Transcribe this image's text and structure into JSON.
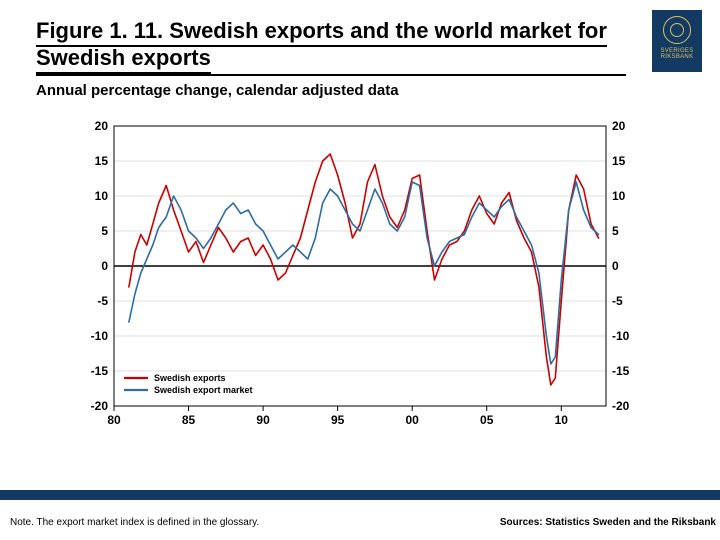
{
  "title": "Figure 1. 11. Swedish exports and the world market for Swedish exports",
  "subtitle": "Annual percentage change, calendar adjusted data",
  "note": "Note. The export market index is defined in the glossary.",
  "sources": "Sources: Statistics Sweden and the Riksbank",
  "logo_text_top": "SVERIGES",
  "logo_text_bottom": "RIKSBANK",
  "chart": {
    "type": "line",
    "background_color": "#ffffff",
    "plot_border_color": "#000000",
    "grid_color": "#bfbfbf",
    "grid_width": 0.6,
    "zero_line_color": "#000000",
    "zero_line_width": 1.6,
    "axis_font_size": 12,
    "axis_font_weight": "bold",
    "ylim": [
      -20,
      20
    ],
    "ytick_step": 5,
    "yticks": [
      -20,
      -15,
      -10,
      -5,
      0,
      5,
      10,
      15,
      20
    ],
    "yticks_right": [
      -20,
      -15,
      -10,
      -5,
      0,
      5,
      10,
      15,
      20
    ],
    "x_range": [
      1980,
      2013
    ],
    "xticks": [
      1980,
      1985,
      1990,
      1995,
      2000,
      2005,
      2010
    ],
    "xtick_labels": [
      "80",
      "85",
      "90",
      "95",
      "00",
      "05",
      "10"
    ],
    "line_width": 1.6,
    "series": [
      {
        "name": "Swedish exports",
        "color": "#cc0000",
        "x": [
          1981.0,
          1981.4,
          1981.8,
          1982.2,
          1982.6,
          1983.0,
          1983.5,
          1984.0,
          1984.5,
          1985.0,
          1985.5,
          1986.0,
          1986.5,
          1987.0,
          1987.5,
          1988.0,
          1988.5,
          1989.0,
          1989.5,
          1990.0,
          1990.5,
          1991.0,
          1991.5,
          1992.0,
          1992.5,
          1993.0,
          1993.5,
          1994.0,
          1994.5,
          1995.0,
          1995.5,
          1996.0,
          1996.5,
          1997.0,
          1997.5,
          1998.0,
          1998.5,
          1999.0,
          1999.5,
          2000.0,
          2000.5,
          2001.0,
          2001.5,
          2002.0,
          2002.5,
          2003.0,
          2003.5,
          2004.0,
          2004.5,
          2005.0,
          2005.5,
          2006.0,
          2006.5,
          2007.0,
          2007.5,
          2008.0,
          2008.5,
          2009.0,
          2009.3,
          2009.6,
          2010.0,
          2010.5,
          2011.0,
          2011.5,
          2012.0,
          2012.5
        ],
        "y": [
          -3.0,
          2.0,
          4.5,
          3.0,
          6.0,
          9.0,
          11.5,
          8.0,
          5.0,
          2.0,
          3.5,
          0.5,
          3.0,
          5.5,
          4.0,
          2.0,
          3.5,
          4.0,
          1.5,
          3.0,
          1.0,
          -2.0,
          -1.0,
          1.5,
          4.0,
          8.0,
          12.0,
          15.0,
          16.0,
          13.0,
          9.0,
          4.0,
          6.0,
          12.0,
          14.5,
          10.0,
          7.0,
          5.5,
          8.0,
          12.5,
          13.0,
          5.0,
          -2.0,
          1.0,
          3.0,
          3.5,
          5.0,
          8.0,
          10.0,
          7.5,
          6.0,
          9.0,
          10.5,
          6.5,
          4.0,
          2.0,
          -3.0,
          -13.0,
          -17.0,
          -16.0,
          -5.0,
          8.0,
          13.0,
          11.0,
          6.0,
          4.0
        ]
      },
      {
        "name": "Swedish export market",
        "color": "#2e6ca4",
        "x": [
          1981.0,
          1981.4,
          1981.8,
          1982.2,
          1982.6,
          1983.0,
          1983.5,
          1984.0,
          1984.5,
          1985.0,
          1985.5,
          1986.0,
          1986.5,
          1987.0,
          1987.5,
          1988.0,
          1988.5,
          1989.0,
          1989.5,
          1990.0,
          1990.5,
          1991.0,
          1991.5,
          1992.0,
          1992.5,
          1993.0,
          1993.5,
          1994.0,
          1994.5,
          1995.0,
          1995.5,
          1996.0,
          1996.5,
          1997.0,
          1997.5,
          1998.0,
          1998.5,
          1999.0,
          1999.5,
          2000.0,
          2000.5,
          2001.0,
          2001.5,
          2002.0,
          2002.5,
          2003.0,
          2003.5,
          2004.0,
          2004.5,
          2005.0,
          2005.5,
          2006.0,
          2006.5,
          2007.0,
          2007.5,
          2008.0,
          2008.5,
          2009.0,
          2009.3,
          2009.6,
          2010.0,
          2010.5,
          2011.0,
          2011.5,
          2012.0,
          2012.5
        ],
        "y": [
          -8.0,
          -4.0,
          -1.0,
          1.0,
          3.0,
          5.5,
          7.0,
          10.0,
          8.0,
          5.0,
          4.0,
          2.5,
          4.0,
          6.0,
          8.0,
          9.0,
          7.5,
          8.0,
          6.0,
          5.0,
          3.0,
          1.0,
          2.0,
          3.0,
          2.0,
          1.0,
          4.0,
          9.0,
          11.0,
          10.0,
          8.0,
          6.0,
          5.0,
          8.0,
          11.0,
          9.0,
          6.0,
          5.0,
          7.0,
          12.0,
          11.5,
          4.0,
          0.0,
          2.0,
          3.5,
          4.0,
          4.5,
          7.0,
          9.0,
          8.0,
          7.0,
          8.5,
          9.5,
          7.0,
          5.0,
          3.0,
          -1.0,
          -10.0,
          -14.0,
          -13.0,
          -2.0,
          8.0,
          12.0,
          8.0,
          5.5,
          4.5
        ]
      }
    ],
    "legend": {
      "position": "lower-left-inside",
      "font_size": 9,
      "font_weight": "bold",
      "items": [
        {
          "label": "Swedish exports",
          "color": "#cc0000"
        },
        {
          "label": "Swedish export market",
          "color": "#2e6ca4"
        }
      ]
    }
  },
  "colors": {
    "brand_navy": "#123a63",
    "brand_gold": "#d9c06a"
  }
}
